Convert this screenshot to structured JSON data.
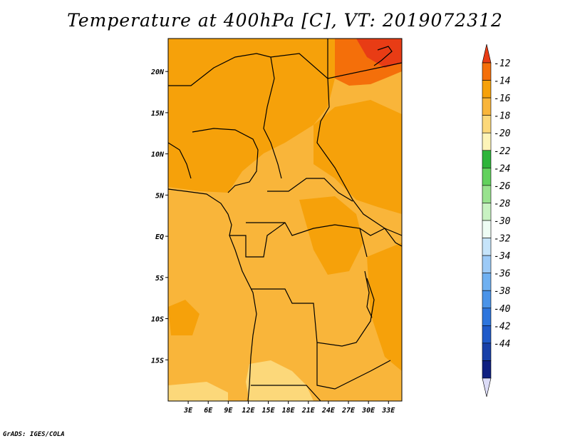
{
  "title": "Temperature at 400hPa [C], VT: 2019072312",
  "credit": "GrADS: IGES/COLA",
  "map": {
    "field": "temperature",
    "level": "400hPa",
    "unit": "C",
    "region_lon": [
      0,
      35
    ],
    "region_lat": [
      -20,
      24
    ],
    "lat_ticks": [
      {
        "label": "20N",
        "lat": 20
      },
      {
        "label": "15N",
        "lat": 15
      },
      {
        "label": "10N",
        "lat": 10
      },
      {
        "label": "5N",
        "lat": 5
      },
      {
        "label": "EQ",
        "lat": 0
      },
      {
        "label": "5S",
        "lat": -5
      },
      {
        "label": "10S",
        "lat": -10
      },
      {
        "label": "15S",
        "lat": -15
      }
    ],
    "lon_ticks": [
      {
        "label": "3E",
        "lon": 3
      },
      {
        "label": "6E",
        "lon": 6
      },
      {
        "label": "9E",
        "lon": 9
      },
      {
        "label": "12E",
        "lon": 12
      },
      {
        "label": "15E",
        "lon": 15
      },
      {
        "label": "18E",
        "lon": 18
      },
      {
        "label": "21E",
        "lon": 21
      },
      {
        "label": "24E",
        "lon": 24
      },
      {
        "label": "27E",
        "lon": 27
      },
      {
        "label": "30E",
        "lon": 30
      },
      {
        "label": "33E",
        "lon": 33
      }
    ]
  },
  "colorbar": {
    "colors": [
      "#e83c15",
      "#f46f0a",
      "#f6a10a",
      "#f9b53a",
      "#fcd87a",
      "#fdf4b8",
      "#2eb43a",
      "#62d15d",
      "#98e28e",
      "#c8f2c2",
      "#eefcf4",
      "#c6e4fa",
      "#9ccaf7",
      "#6fb0f1",
      "#4a93e8",
      "#2d75dd",
      "#1f5ac9",
      "#1840a8",
      "#0f1f80",
      "#dcdcf7"
    ],
    "labels": [
      "-12",
      "-14",
      "-16",
      "-18",
      "-20",
      "-22",
      "-24",
      "-26",
      "-28",
      "-30",
      "-32",
      "-34",
      "-36",
      "-38",
      "-40",
      "-42",
      "-44"
    ]
  }
}
